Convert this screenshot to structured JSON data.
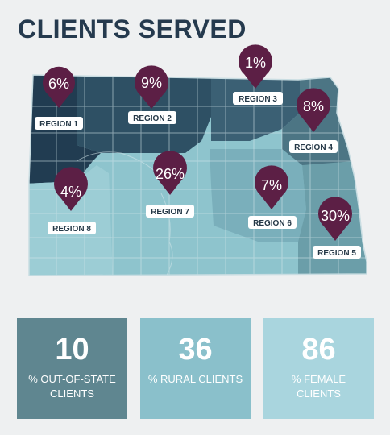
{
  "title": "CLIENTS SERVED",
  "regions": [
    {
      "name": "REGION 1",
      "percent": "6%"
    },
    {
      "name": "REGION 2",
      "percent": "9%"
    },
    {
      "name": "REGION 3",
      "percent": "1%"
    },
    {
      "name": "REGION 4",
      "percent": "8%"
    },
    {
      "name": "REGION 5",
      "percent": "30%"
    },
    {
      "name": "REGION 6",
      "percent": "7%"
    },
    {
      "name": "REGION 7",
      "percent": "26%"
    },
    {
      "name": "REGION 8",
      "percent": "4%"
    }
  ],
  "stats": [
    {
      "value": "10",
      "label": "% OUT-OF-STATE CLIENTS",
      "color": "#5f8690"
    },
    {
      "value": "36",
      "label": "% RURAL CLIENTS",
      "color": "#8ac0cb"
    },
    {
      "value": "86",
      "label": "% FEMALE CLIENTS",
      "color": "#a9d5de"
    }
  ],
  "colors": {
    "pin": "#5c1f45",
    "dark_region": "#223d52",
    "mid_region": "#33566a",
    "teal_region": "#5f8b96",
    "light_region": "#8ec4cd"
  }
}
